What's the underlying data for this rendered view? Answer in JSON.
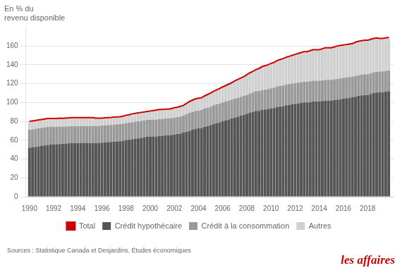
{
  "chart_data": {
    "type": "bar",
    "stacked": true,
    "ylabel": [
      "En % du",
      "revenu disponible"
    ],
    "x": [
      1990,
      1990.25,
      1990.5,
      1990.75,
      1991,
      1991.25,
      1991.5,
      1991.75,
      1992,
      1992.25,
      1992.5,
      1992.75,
      1993,
      1993.25,
      1993.5,
      1993.75,
      1994,
      1994.25,
      1994.5,
      1994.75,
      1995,
      1995.25,
      1995.5,
      1995.75,
      1996,
      1996.25,
      1996.5,
      1996.75,
      1997,
      1997.25,
      1997.5,
      1997.75,
      1998,
      1998.25,
      1998.5,
      1998.75,
      1999,
      1999.25,
      1999.5,
      1999.75,
      2000,
      2000.25,
      2000.5,
      2000.75,
      2001,
      2001.25,
      2001.5,
      2001.75,
      2002,
      2002.25,
      2002.5,
      2002.75,
      2003,
      2003.25,
      2003.5,
      2003.75,
      2004,
      2004.25,
      2004.5,
      2004.75,
      2005,
      2005.25,
      2005.5,
      2005.75,
      2006,
      2006.25,
      2006.5,
      2006.75,
      2007,
      2007.25,
      2007.5,
      2007.75,
      2008,
      2008.25,
      2008.5,
      2008.75,
      2009,
      2009.25,
      2009.5,
      2009.75,
      2010,
      2010.25,
      2010.5,
      2010.75,
      2011,
      2011.25,
      2011.5,
      2011.75,
      2012,
      2012.25,
      2012.5,
      2012.75,
      2013,
      2013.25,
      2013.5,
      2013.75,
      2014,
      2014.25,
      2014.5,
      2014.75,
      2015,
      2015.25,
      2015.5,
      2015.75,
      2016,
      2016.25,
      2016.5,
      2016.75,
      2017,
      2017.25,
      2017.5,
      2017.75,
      2018,
      2018.25,
      2018.5,
      2018.75,
      2019,
      2019.25,
      2019.5,
      2019.75
    ],
    "series": [
      {
        "name": "Crédit hypothécaire",
        "type": "bar",
        "color": "#555555",
        "values": [
          52,
          52.5,
          53,
          53.5,
          54,
          54.5,
          55,
          55.5,
          55.5,
          55.8,
          56,
          56.2,
          56.5,
          56.7,
          57,
          57,
          57,
          57,
          57,
          57,
          57,
          57,
          57,
          57,
          57.5,
          57.8,
          58,
          58.2,
          58.5,
          58.8,
          59,
          59.5,
          60,
          60.5,
          61,
          61.5,
          62,
          62.5,
          63,
          63.5,
          63.5,
          64,
          64,
          64.5,
          64.5,
          65,
          65,
          65.5,
          66,
          66.5,
          67,
          68,
          69,
          70,
          71,
          72,
          72.5,
          73,
          74,
          75,
          76,
          77,
          78,
          79,
          80,
          81,
          82,
          83,
          84,
          85,
          86,
          87,
          88,
          89,
          90,
          91,
          91,
          92,
          92.5,
          93,
          93.5,
          94,
          95,
          95.5,
          96,
          97,
          97.5,
          98,
          98.5,
          99,
          99.5,
          100,
          100,
          100.5,
          101,
          101,
          101,
          101.5,
          102,
          102,
          102,
          102.5,
          103,
          103.5,
          104,
          104.5,
          105,
          105.5,
          106,
          107,
          107.5,
          108,
          108,
          109,
          110,
          110.5,
          111,
          111,
          111.5,
          112
        ]
      },
      {
        "name": "Crédit à la consommation",
        "type": "bar",
        "color": "#999999",
        "values": [
          19,
          19,
          19,
          19,
          19,
          19,
          19,
          19,
          18.5,
          18.5,
          18.5,
          18,
          18,
          18,
          18,
          18,
          18,
          18,
          18,
          18,
          18,
          18,
          18,
          18,
          18,
          18,
          18,
          18,
          18,
          18,
          18,
          18,
          18,
          18,
          18,
          18,
          18,
          18,
          18,
          18,
          18,
          18,
          18,
          18,
          18,
          18,
          18,
          18,
          18,
          18,
          18,
          18,
          18.5,
          19,
          19,
          19,
          19,
          19,
          19.5,
          19.5,
          19.5,
          20,
          20,
          20,
          20,
          20,
          20,
          20,
          20,
          20,
          20,
          20,
          20,
          20.5,
          20.5,
          21,
          21,
          21,
          21,
          21,
          21.5,
          21.5,
          22,
          22,
          22,
          22,
          22,
          22,
          22,
          22,
          22,
          22,
          22,
          22,
          22,
          22,
          22,
          22,
          22,
          22,
          22,
          22,
          22,
          22,
          22,
          22,
          22,
          22,
          22,
          22,
          22,
          22,
          22,
          22,
          22,
          22,
          22,
          22,
          22,
          22
        ]
      },
      {
        "name": "Autres",
        "type": "bar",
        "color": "#d0d0d0",
        "values": [
          9,
          9,
          9,
          9,
          9,
          9,
          9,
          9,
          9,
          9,
          9,
          9,
          9,
          9,
          9,
          9,
          9,
          9,
          9,
          9,
          9,
          9,
          8.5,
          8.5,
          8,
          8,
          8,
          8,
          8,
          8,
          8,
          8,
          8.5,
          8.5,
          9,
          9,
          9,
          9,
          9,
          9,
          9.5,
          9.5,
          10,
          10,
          10,
          10,
          10,
          10,
          10.5,
          10.5,
          11,
          11,
          11.5,
          12,
          12.5,
          13,
          13,
          13,
          13.5,
          14,
          14.5,
          15,
          15.5,
          16,
          16.5,
          17,
          17.5,
          18,
          19,
          19.5,
          20,
          20.5,
          21.5,
          22,
          22.5,
          23,
          24,
          25,
          25.5,
          26,
          26.5,
          27,
          27.5,
          28,
          28.5,
          29,
          29.5,
          30,
          30.5,
          31,
          31.5,
          32,
          32,
          32.5,
          33,
          33,
          33,
          33.5,
          34,
          34,
          34,
          34.5,
          35,
          35,
          35,
          35.5,
          36,
          36,
          36,
          36,
          36,
          36,
          36,
          36,
          36,
          36,
          35.5,
          35.5,
          35,
          35
        ]
      },
      {
        "name": "Total",
        "type": "line",
        "color": "#cc0000",
        "values": [
          80,
          80.5,
          81,
          81.5,
          82,
          82.5,
          83,
          83,
          83,
          83,
          83.5,
          83.2,
          83.5,
          83.7,
          84,
          84,
          84,
          84,
          84,
          84,
          84,
          84,
          83.5,
          83.5,
          83.5,
          83.8,
          84,
          84.2,
          84.5,
          84.8,
          85,
          85.5,
          86.5,
          87,
          88,
          88.5,
          89,
          89.5,
          90,
          90.5,
          91,
          91.5,
          92,
          92.5,
          92.5,
          93,
          93,
          93.5,
          94.5,
          95,
          96,
          97,
          99,
          101,
          102.5,
          104,
          104.5,
          105,
          107,
          108.5,
          110,
          112,
          113.5,
          115,
          116.5,
          118,
          119.5,
          121,
          123,
          124.5,
          126,
          127.5,
          129.5,
          131.5,
          133,
          135,
          136,
          138,
          139,
          140,
          141.5,
          142.5,
          144.5,
          145.5,
          146.5,
          148,
          149,
          150,
          151,
          152,
          153,
          154,
          154,
          155,
          156,
          156,
          156,
          157,
          158,
          158,
          158,
          159,
          160,
          160.5,
          161,
          161.5,
          162,
          162.5,
          164,
          165,
          165.5,
          166,
          166,
          167,
          168,
          168.5,
          168,
          168,
          168.5,
          169
        ]
      }
    ],
    "xlim": [
      1989.7,
      2020.15
    ],
    "xticks": [
      1990,
      1992,
      1994,
      1996,
      1998,
      2000,
      2002,
      2004,
      2006,
      2008,
      2010,
      2012,
      2014,
      2016,
      2018
    ],
    "ylim": [
      0,
      180
    ],
    "yticks": [
      0,
      20,
      40,
      60,
      80,
      100,
      120,
      140,
      160
    ],
    "grid": "y",
    "legend": "bottom",
    "annotations": [
      {
        "text": "Sources : Statistique Canada et Desjardins, Études économiques",
        "color": "#666666"
      },
      {
        "text": "les affaires",
        "color": "#cc0000"
      }
    ]
  }
}
